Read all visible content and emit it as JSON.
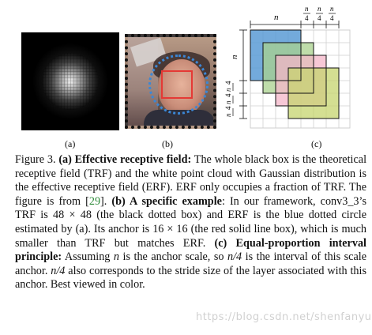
{
  "panel_a": {
    "label": "(a)"
  },
  "panel_b": {
    "label": "(b)"
  },
  "panel_c": {
    "label": "(c)",
    "top_n": "n",
    "top_small": [
      "n",
      "n",
      "n"
    ],
    "top_small_den": [
      "4",
      "4",
      "4"
    ],
    "left_n": "n",
    "left_small": [
      "n",
      "n",
      "n"
    ],
    "left_small_den": [
      "4",
      "4",
      "4"
    ],
    "colors": {
      "blue": "#5b9bd5",
      "green": "#a9d18e",
      "pink": "#f4b6c8",
      "olive": "#c6d46e",
      "grid": "#cfcfcf"
    }
  },
  "caption": {
    "fig_label": "Figure 3.",
    "a_title": "(a) Effective receptive field:",
    "a_text": " The whole black box is the theoretical receptive field (TRF) and the white point cloud with Gaussian distribution is the effective receptive field (ERF). ERF only occupies a fraction of TRF. The figure is from [",
    "a_ref": "29",
    "a_end": "]. ",
    "b_title": "(b) A specific example",
    "b_text": ": In our framework, conv3_3’s TRF is 48 × 48 (the black dotted box) and ERF is the blue dotted circle estimated by (a). Its anchor is 16 × 16 (the red solid line box), which is much smaller than TRF but matches ERF. ",
    "c_title": "(c) Equal-proportion interval principle:",
    "c_text1": " Assuming ",
    "c_n": "n",
    "c_text2": " is the anchor scale, so ",
    "c_n4": "n/4",
    "c_text3": " is the interval of this scale anchor. ",
    "c_n4b": "n/4",
    "c_text4": " also corresponds to the stride size of the layer associated with this anchor. Best viewed in color."
  },
  "watermark": "https://blog.csdn.net/shenfanyue"
}
